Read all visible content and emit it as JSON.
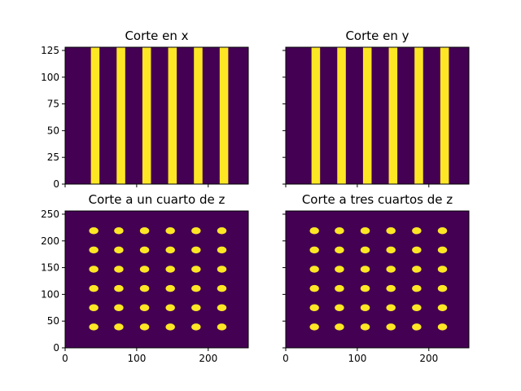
{
  "colors": {
    "background": "#440154",
    "foreground": "#fde725",
    "axis": "#000000"
  },
  "chart_data": [
    {
      "type": "heatmap",
      "title": "Corte en x",
      "xlim": [
        0,
        256
      ],
      "ylim": [
        0,
        128
      ],
      "xticks": [
        0,
        100,
        200
      ],
      "yticks": [
        0,
        25,
        50,
        75,
        100,
        125
      ],
      "show_xticklabels": false,
      "show_yticklabels": true,
      "stripes_x": [
        [
          36,
          48
        ],
        [
          72,
          84
        ],
        [
          108,
          120
        ],
        [
          144,
          156
        ],
        [
          180,
          192
        ],
        [
          216,
          228
        ]
      ]
    },
    {
      "type": "heatmap",
      "title": "Corte en y",
      "xlim": [
        0,
        256
      ],
      "ylim": [
        0,
        128
      ],
      "xticks": [
        0,
        100,
        200
      ],
      "yticks": [
        0,
        25,
        50,
        75,
        100,
        125
      ],
      "show_xticklabels": false,
      "show_yticklabels": false,
      "stripes_x": [
        [
          36,
          48
        ],
        [
          72,
          84
        ],
        [
          108,
          120
        ],
        [
          144,
          156
        ],
        [
          180,
          192
        ],
        [
          216,
          228
        ]
      ]
    },
    {
      "type": "heatmap",
      "title": "Corte a un cuarto de z",
      "xlim": [
        0,
        256
      ],
      "ylim": [
        0,
        256
      ],
      "xticks": [
        0,
        100,
        200
      ],
      "yticks": [
        0,
        50,
        100,
        150,
        200,
        250
      ],
      "show_xticklabels": true,
      "show_yticklabels": true,
      "dot_centers_x": [
        40,
        75,
        111,
        147,
        183,
        219
      ],
      "dot_centers_y": [
        39,
        75,
        111,
        147,
        183,
        219
      ],
      "dot_radius": 6.5
    },
    {
      "type": "heatmap",
      "title": "Corte a tres cuartos de z",
      "xlim": [
        0,
        256
      ],
      "ylim": [
        0,
        256
      ],
      "xticks": [
        0,
        100,
        200
      ],
      "yticks": [
        0,
        50,
        100,
        150,
        200,
        250
      ],
      "show_xticklabels": true,
      "show_yticklabels": false,
      "dot_centers_x": [
        40,
        75,
        111,
        147,
        183,
        219
      ],
      "dot_centers_y": [
        39,
        75,
        111,
        147,
        183,
        219
      ],
      "dot_radius": 6.5
    }
  ]
}
